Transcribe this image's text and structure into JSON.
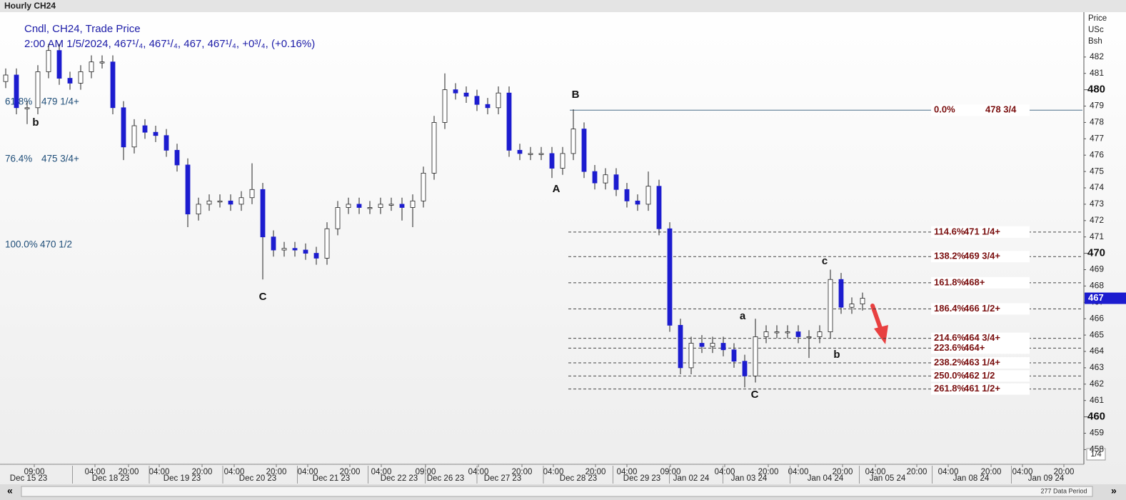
{
  "chart_data": {
    "type": "candlestick",
    "title": "Hourly CH24",
    "legend_line1": "Cndl, CH24, Trade Price",
    "legend_line2": "2:00 AM 1/5/2024, 467¹/₄, 467¹/₄, 467, 467¹/₄, +0³/₄, (+0.16%)",
    "y_axis_label": [
      "Price",
      "USc",
      "Bsh"
    ],
    "ylim": [
      457.1,
      484.7
    ],
    "yticks": [
      458,
      459,
      460,
      461,
      462,
      463,
      464,
      465,
      466,
      467,
      468,
      469,
      470,
      471,
      472,
      473,
      474,
      475,
      476,
      477,
      478,
      479,
      480,
      481,
      482
    ],
    "major_yticks": [
      460,
      470,
      480
    ],
    "last_price": {
      "value": 467.25,
      "label": "467"
    },
    "up_color": "#ffffff",
    "down_color": "#1c1ccf",
    "open": [
      480.5,
      480.9,
      478.9,
      478.9,
      481.1,
      482.4,
      480.7,
      480.4,
      481.1,
      481.7,
      481.7,
      478.9,
      476.5,
      477.8,
      477.4,
      477.2,
      476.3,
      475.4,
      472.4,
      473.0,
      473.2,
      473.2,
      473.0,
      473.4,
      473.9,
      471.0,
      470.2,
      470.3,
      470.2,
      470.0,
      469.7,
      471.5,
      472.8,
      473.0,
      472.8,
      472.8,
      473.0,
      473.0,
      472.8,
      473.2,
      474.9,
      478.0,
      480.0,
      479.8,
      479.6,
      479.1,
      478.9,
      479.8,
      476.3,
      476.1,
      476.1,
      476.1,
      475.2,
      476.1,
      477.6,
      475.0,
      474.3,
      474.8,
      473.9,
      473.2,
      473.0,
      474.1,
      471.5,
      465.6,
      463.0,
      464.5,
      464.3,
      464.5,
      464.1,
      463.4,
      462.5,
      464.9,
      465.2,
      465.2,
      465.2,
      464.9,
      464.9,
      465.2,
      468.4,
      466.7,
      466.9
    ],
    "high": [
      481.3,
      481.3,
      479.3,
      481.5,
      482.8,
      482.8,
      481.1,
      481.5,
      482.1,
      482.1,
      482.1,
      479.3,
      478.2,
      478.2,
      477.8,
      477.6,
      476.7,
      475.8,
      473.4,
      473.6,
      473.6,
      473.6,
      473.8,
      475.5,
      474.3,
      471.4,
      470.7,
      470.7,
      470.6,
      470.4,
      471.9,
      473.2,
      473.4,
      473.4,
      473.2,
      473.4,
      473.4,
      473.4,
      473.6,
      475.3,
      478.4,
      481.0,
      480.4,
      480.2,
      480.0,
      479.5,
      480.2,
      480.2,
      476.7,
      476.5,
      476.5,
      476.5,
      476.5,
      478.8,
      478.0,
      475.4,
      475.2,
      475.2,
      474.3,
      473.6,
      475.0,
      474.5,
      471.9,
      466.0,
      464.9,
      465.0,
      464.9,
      464.9,
      464.5,
      463.8,
      466.0,
      465.6,
      465.6,
      465.6,
      465.6,
      465.3,
      465.6,
      469.0,
      468.8,
      467.3,
      467.6
    ],
    "low": [
      480.1,
      478.5,
      477.9,
      478.5,
      480.7,
      480.3,
      480.0,
      480.0,
      480.7,
      481.3,
      478.5,
      475.7,
      476.1,
      477.0,
      476.8,
      475.9,
      475.0,
      471.6,
      472.0,
      472.6,
      472.8,
      472.6,
      472.6,
      473.0,
      468.4,
      469.8,
      469.8,
      469.8,
      469.6,
      469.3,
      469.3,
      471.1,
      472.4,
      472.4,
      472.4,
      472.4,
      472.6,
      472.0,
      471.6,
      472.8,
      474.5,
      477.6,
      479.4,
      479.2,
      478.7,
      478.5,
      478.5,
      475.9,
      475.7,
      475.7,
      475.7,
      474.6,
      474.8,
      475.7,
      474.6,
      473.9,
      473.9,
      473.5,
      472.8,
      472.6,
      472.6,
      471.1,
      465.2,
      462.6,
      462.6,
      463.9,
      463.9,
      463.7,
      463.0,
      461.8,
      462.1,
      464.5,
      464.8,
      464.8,
      464.5,
      463.6,
      464.5,
      464.8,
      466.3,
      466.3,
      466.5
    ],
    "close": [
      480.9,
      478.9,
      478.9,
      481.1,
      482.4,
      480.7,
      480.4,
      481.1,
      481.7,
      481.7,
      478.9,
      476.5,
      477.8,
      477.4,
      477.2,
      476.3,
      475.4,
      472.4,
      473.0,
      473.2,
      473.2,
      473.0,
      473.4,
      473.9,
      471.0,
      470.2,
      470.3,
      470.2,
      470.0,
      469.7,
      471.5,
      472.8,
      473.0,
      472.8,
      472.8,
      473.0,
      473.0,
      472.8,
      473.2,
      474.9,
      478.0,
      480.0,
      479.8,
      479.6,
      479.1,
      478.9,
      479.8,
      476.3,
      476.1,
      476.1,
      476.1,
      475.2,
      476.1,
      477.6,
      475.0,
      474.3,
      474.8,
      473.9,
      473.2,
      473.0,
      474.1,
      471.5,
      465.6,
      463.0,
      464.5,
      464.3,
      464.5,
      464.1,
      463.4,
      462.5,
      464.9,
      465.2,
      465.2,
      465.2,
      464.9,
      464.9,
      465.2,
      468.4,
      466.7,
      466.9,
      467.25
    ],
    "left_fib": [
      {
        "pct": "61.8%",
        "price_label": "479 1/4+",
        "value": 479.25
      },
      {
        "pct": "76.4%",
        "price_label": "475 3/4+",
        "value": 475.75
      },
      {
        "pct": "100.0%",
        "price_label": "470 1/2",
        "value": 470.5
      }
    ],
    "right_fib": [
      {
        "pct": "0.0%",
        "price_label": "478 3/4",
        "value": 478.75
      },
      {
        "pct": "114.6%",
        "price_label": "471 1/4+",
        "value": 471.3
      },
      {
        "pct": "138.2%",
        "price_label": "469 3/4+",
        "value": 469.8
      },
      {
        "pct": "161.8%",
        "price_label": "468+",
        "value": 468.2
      },
      {
        "pct": "186.4%",
        "price_label": "466 1/2+",
        "value": 466.6
      },
      {
        "pct": "214.6%",
        "price_label": "464 3/4+",
        "value": 464.8
      },
      {
        "pct": "223.6%",
        "price_label": "464+",
        "value": 464.2
      },
      {
        "pct": "238.2%",
        "price_label": "463 1/4+",
        "value": 463.3
      },
      {
        "pct": "250.0%",
        "price_label": "462 1/2",
        "value": 462.5
      },
      {
        "pct": "261.8%",
        "price_label": "461 1/2+",
        "value": 461.7
      }
    ],
    "wave_labels": [
      "b",
      "C",
      "B",
      "A",
      "C",
      "a",
      "c",
      "b"
    ],
    "time_labels": [
      "09:00",
      "04:00",
      "20:00",
      "04:00",
      "20:00",
      "04:00",
      "20:00",
      "04:00",
      "20:00",
      "04:00",
      "09:00",
      "04:00",
      "20:00",
      "04:00",
      "20:00",
      "04:00",
      "09:00",
      "04:00",
      "20:00",
      "04:00",
      "20:00",
      "04:00",
      "20:00",
      "04:00",
      "20:00",
      "04:00",
      "20:00"
    ],
    "date_labels": [
      "Dec 15 23",
      "Dec 18 23",
      "Dec 19 23",
      "Dec 20 23",
      "Dec 21 23",
      "Dec 22 23",
      "Dec 26 23",
      "Dec 27 23",
      "Dec 28 23",
      "Dec 29 23",
      "Jan 02 24",
      "Jan 03 24",
      "Jan 04 24",
      "Jan 05 24",
      "Jan 08 24",
      "Jan 09 24"
    ],
    "zoom_label": "1/4",
    "scroll_label": "277 Data Period"
  }
}
